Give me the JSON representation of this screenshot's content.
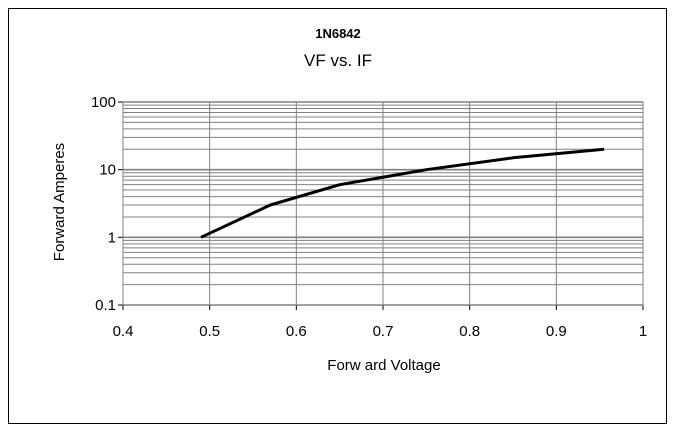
{
  "chart_data": {
    "type": "line",
    "title": "1N6842",
    "subtitle": "VF vs. IF",
    "xlabel": "Forw ard Voltage",
    "ylabel": "Forward Amperes",
    "xlim": [
      0.4,
      1.0
    ],
    "ylim": [
      0.1,
      100
    ],
    "y_scale": "log",
    "grid": true,
    "legend": "none",
    "x_ticks": [
      "0.4",
      "0.5",
      "0.6",
      "0.7",
      "0.8",
      "0.9",
      "1"
    ],
    "y_ticks": [
      "0.1",
      "1",
      "10",
      "100"
    ],
    "series": [
      {
        "color": "#000000",
        "x": [
          0.49,
          0.57,
          0.65,
          0.75,
          0.85,
          0.955
        ],
        "y": [
          1,
          3,
          6,
          10,
          15,
          20
        ]
      }
    ]
  }
}
